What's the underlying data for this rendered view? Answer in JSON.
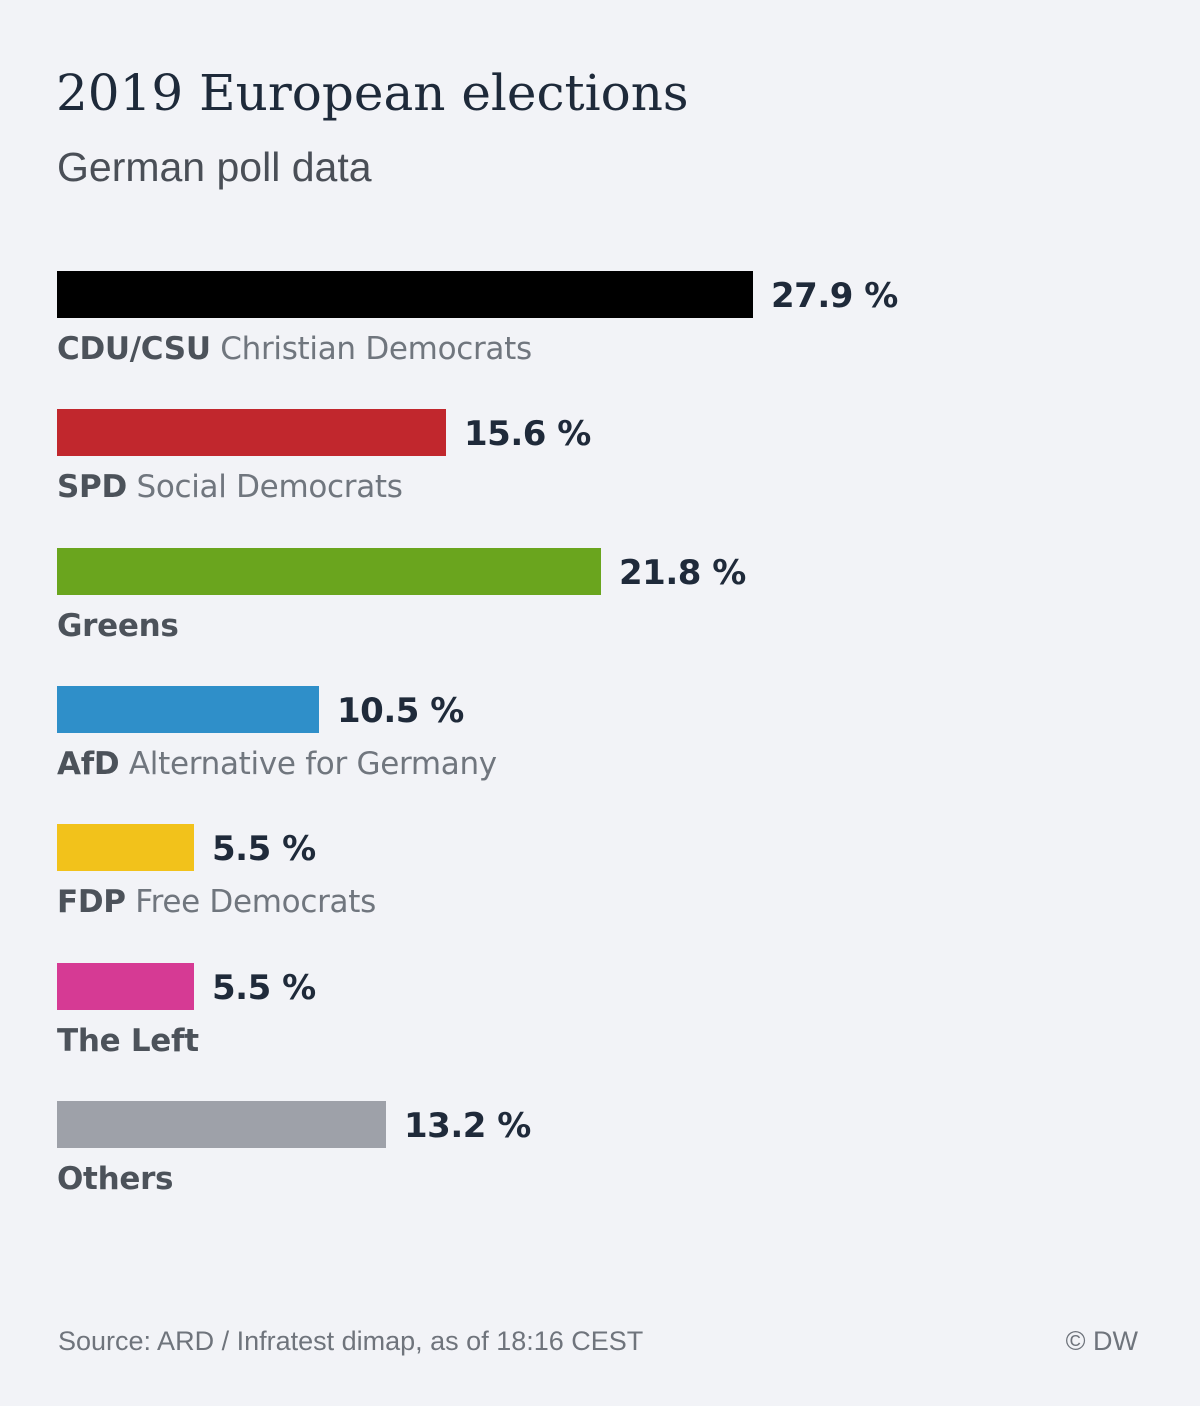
{
  "chart_data": {
    "type": "bar",
    "orientation": "horizontal",
    "title": "2019 European elections",
    "subtitle": "German poll data",
    "unit": "%",
    "categories": [
      {
        "abbr": "CDU/CSU",
        "name": "Christian Democrats"
      },
      {
        "abbr": "SPD",
        "name": "Social Democrats"
      },
      {
        "abbr": "Greens",
        "name": ""
      },
      {
        "abbr": "AfD",
        "name": "Alternative for Germany"
      },
      {
        "abbr": "FDP",
        "name": "Free Democrats"
      },
      {
        "abbr": "The Left",
        "name": ""
      },
      {
        "abbr": "Others",
        "name": ""
      }
    ],
    "values": [
      27.9,
      15.6,
      21.8,
      10.5,
      5.5,
      5.5,
      13.2
    ],
    "value_labels": [
      "27.9 %",
      "15.6 %",
      "21.8 %",
      "10.5 %",
      "5.5 %",
      "5.5 %",
      "13.2 %"
    ],
    "colors": [
      "#000000",
      "#c1272d",
      "#6aa51e",
      "#2f8fc9",
      "#f2c21b",
      "#d63a94",
      "#9ea1a9"
    ],
    "xlim": [
      0,
      27.9
    ],
    "grid": false,
    "legend": "none"
  },
  "footer": {
    "source": "Source: ARD / Infratest dimap, as of 18:16 CEST",
    "credit": "© DW"
  }
}
